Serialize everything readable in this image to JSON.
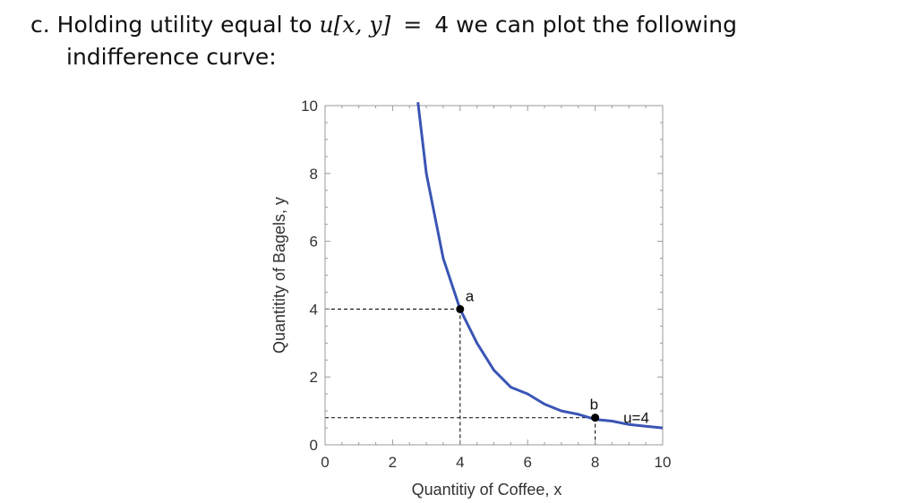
{
  "heading": {
    "prefix": "c.  Holding utility equal to",
    "math": "u[x, y]",
    "equals": "=",
    "suffix": "4 we can plot the following",
    "line2": "indifference curve:"
  },
  "colors": {
    "curve": "#3a55b4",
    "frame": "#9a9a9a",
    "guide": "#222222",
    "point": "#000000"
  },
  "chart_data": {
    "type": "line",
    "title": "",
    "xlabel": "Quantitiy of Coffee, x",
    "ylabel": "Quantitity of Bagels, y",
    "xlim": [
      0,
      10
    ],
    "ylim": [
      0,
      10
    ],
    "xticks": [
      0,
      2,
      4,
      6,
      8,
      10
    ],
    "yticks": [
      0,
      2,
      4,
      6,
      8,
      10
    ],
    "series": [
      {
        "x": [
          2.75,
          3.0,
          3.5,
          4.0,
          4.5,
          5.0,
          5.5,
          6.0,
          6.5,
          7.0,
          7.5,
          8.0,
          8.5,
          9.0,
          9.5,
          10.0
        ],
        "y": [
          10.1,
          8.0,
          5.5,
          4.0,
          3.0,
          2.2,
          1.7,
          1.5,
          1.2,
          1.0,
          0.9,
          0.75,
          0.7,
          0.6,
          0.55,
          0.5
        ]
      }
    ],
    "points": [
      {
        "label": "a",
        "x": 4,
        "y": 4
      },
      {
        "label": "b",
        "x": 8,
        "y": 0.8
      }
    ],
    "curve_label": {
      "text": "u=4",
      "x": 9.6,
      "y": 0.8
    },
    "grid": false,
    "frame_ticks": true
  }
}
